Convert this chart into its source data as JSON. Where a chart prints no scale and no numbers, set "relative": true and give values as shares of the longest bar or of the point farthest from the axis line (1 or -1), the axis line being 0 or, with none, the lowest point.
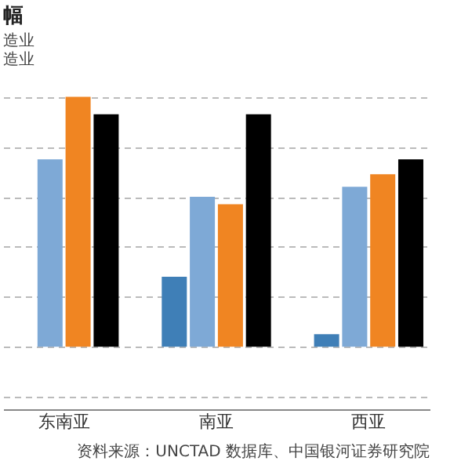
{
  "chart_data": {
    "type": "bar",
    "title": "幅",
    "relative": true,
    "grid": "y",
    "categories": [
      "东南亚",
      "南亚",
      "西亚"
    ],
    "series": [
      {
        "color": "#3f7fb7",
        "values": [
          null,
          0.28,
          0.05
        ]
      },
      {
        "color": "#7ea9d6",
        "values": [
          0.75,
          0.6,
          0.64
        ]
      },
      {
        "color": "#f08522",
        "values": [
          1,
          0.57,
          0.69
        ]
      },
      {
        "color": "#000000",
        "values": [
          0.93,
          0.93,
          0.75
        ]
      }
    ],
    "annotations": [
      "造业",
      "造业",
      "资料来源：UNCTAD 数据库、中国银河证券研究院"
    ]
  }
}
